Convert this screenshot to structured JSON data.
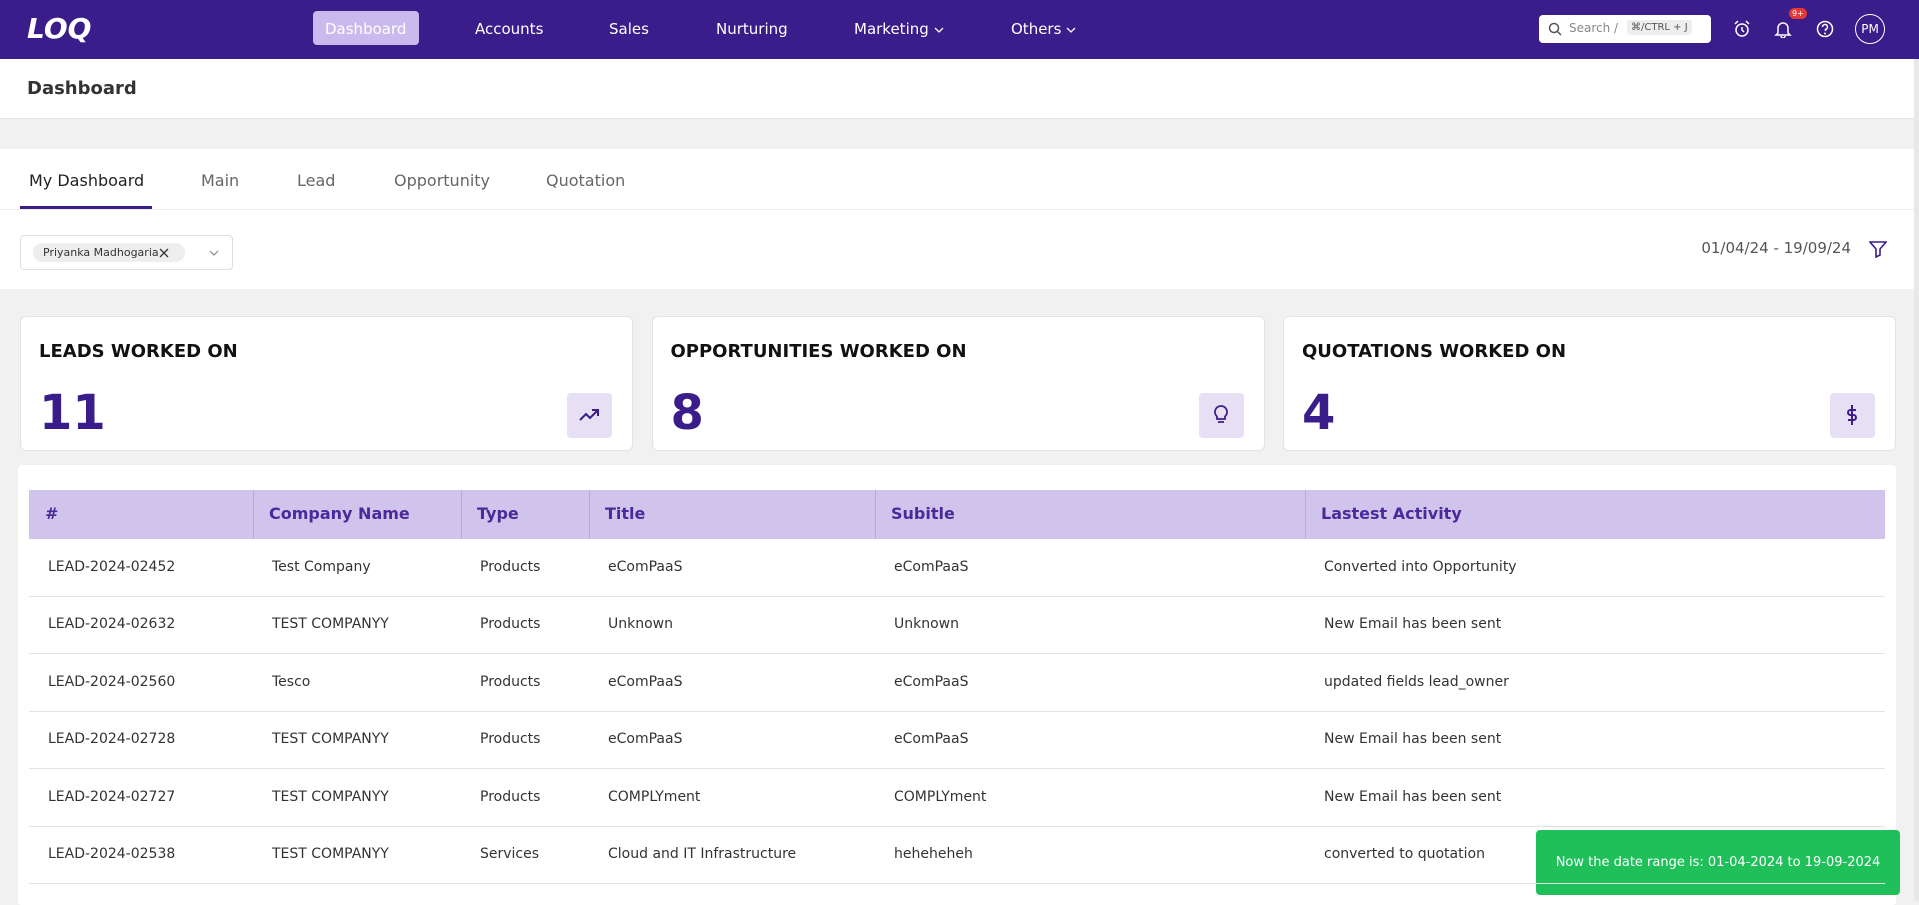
{
  "nav": {
    "logo": "LOQ",
    "items": [
      "Dashboard",
      "Accounts",
      "Sales",
      "Nurturing",
      "Marketing",
      "Others"
    ],
    "search": "Search /",
    "shortcut": "⌘/CTRL + J",
    "badge": "9+",
    "avatar": "PM"
  },
  "header": {
    "title": "Dashboard"
  },
  "tabs": [
    "My Dashboard",
    "Main",
    "Lead",
    "Opportunity",
    "Quotation"
  ],
  "filter": {
    "chip": "Priyanka Madhogaria",
    "date_range": "01/04/24 - 19/09/24"
  },
  "cards": [
    {
      "title": "LEADS WORKED ON",
      "value": 11
    },
    {
      "title": "OPPORTUNITIES WORKED ON",
      "value": 8
    },
    {
      "title": "QUOTATIONS WORKED ON",
      "value": 4
    }
  ],
  "table": {
    "headers": [
      "#",
      "Company Name",
      "Type",
      "Title",
      "Subitle",
      "Lastest Activity"
    ],
    "rows": [
      [
        "LEAD-2024-02452",
        "Test Company",
        "Products",
        "eComPaaS",
        "eComPaaS",
        "Converted into Opportunity"
      ],
      [
        "LEAD-2024-02632",
        "TEST COMPANYY",
        "Products",
        "Unknown",
        "Unknown",
        "New Email has been sent"
      ],
      [
        "LEAD-2024-02560",
        "Tesco",
        "Products",
        "eComPaaS",
        "eComPaaS",
        "updated fields lead_owner"
      ],
      [
        "LEAD-2024-02728",
        "TEST COMPANYY",
        "Products",
        "eComPaaS",
        "eComPaaS",
        "New Email has been sent"
      ],
      [
        "LEAD-2024-02727",
        "TEST COMPANYY",
        "Products",
        "COMPLYment",
        "COMPLYment",
        "New Email has been sent"
      ],
      [
        "LEAD-2024-02538",
        "TEST COMPANYY",
        "Services",
        "Cloud and IT Infrastructure",
        "heheheheh",
        "converted to quotation"
      ]
    ]
  },
  "toast": "Now the date range is: 01-04-2024 to 19-09-2024"
}
